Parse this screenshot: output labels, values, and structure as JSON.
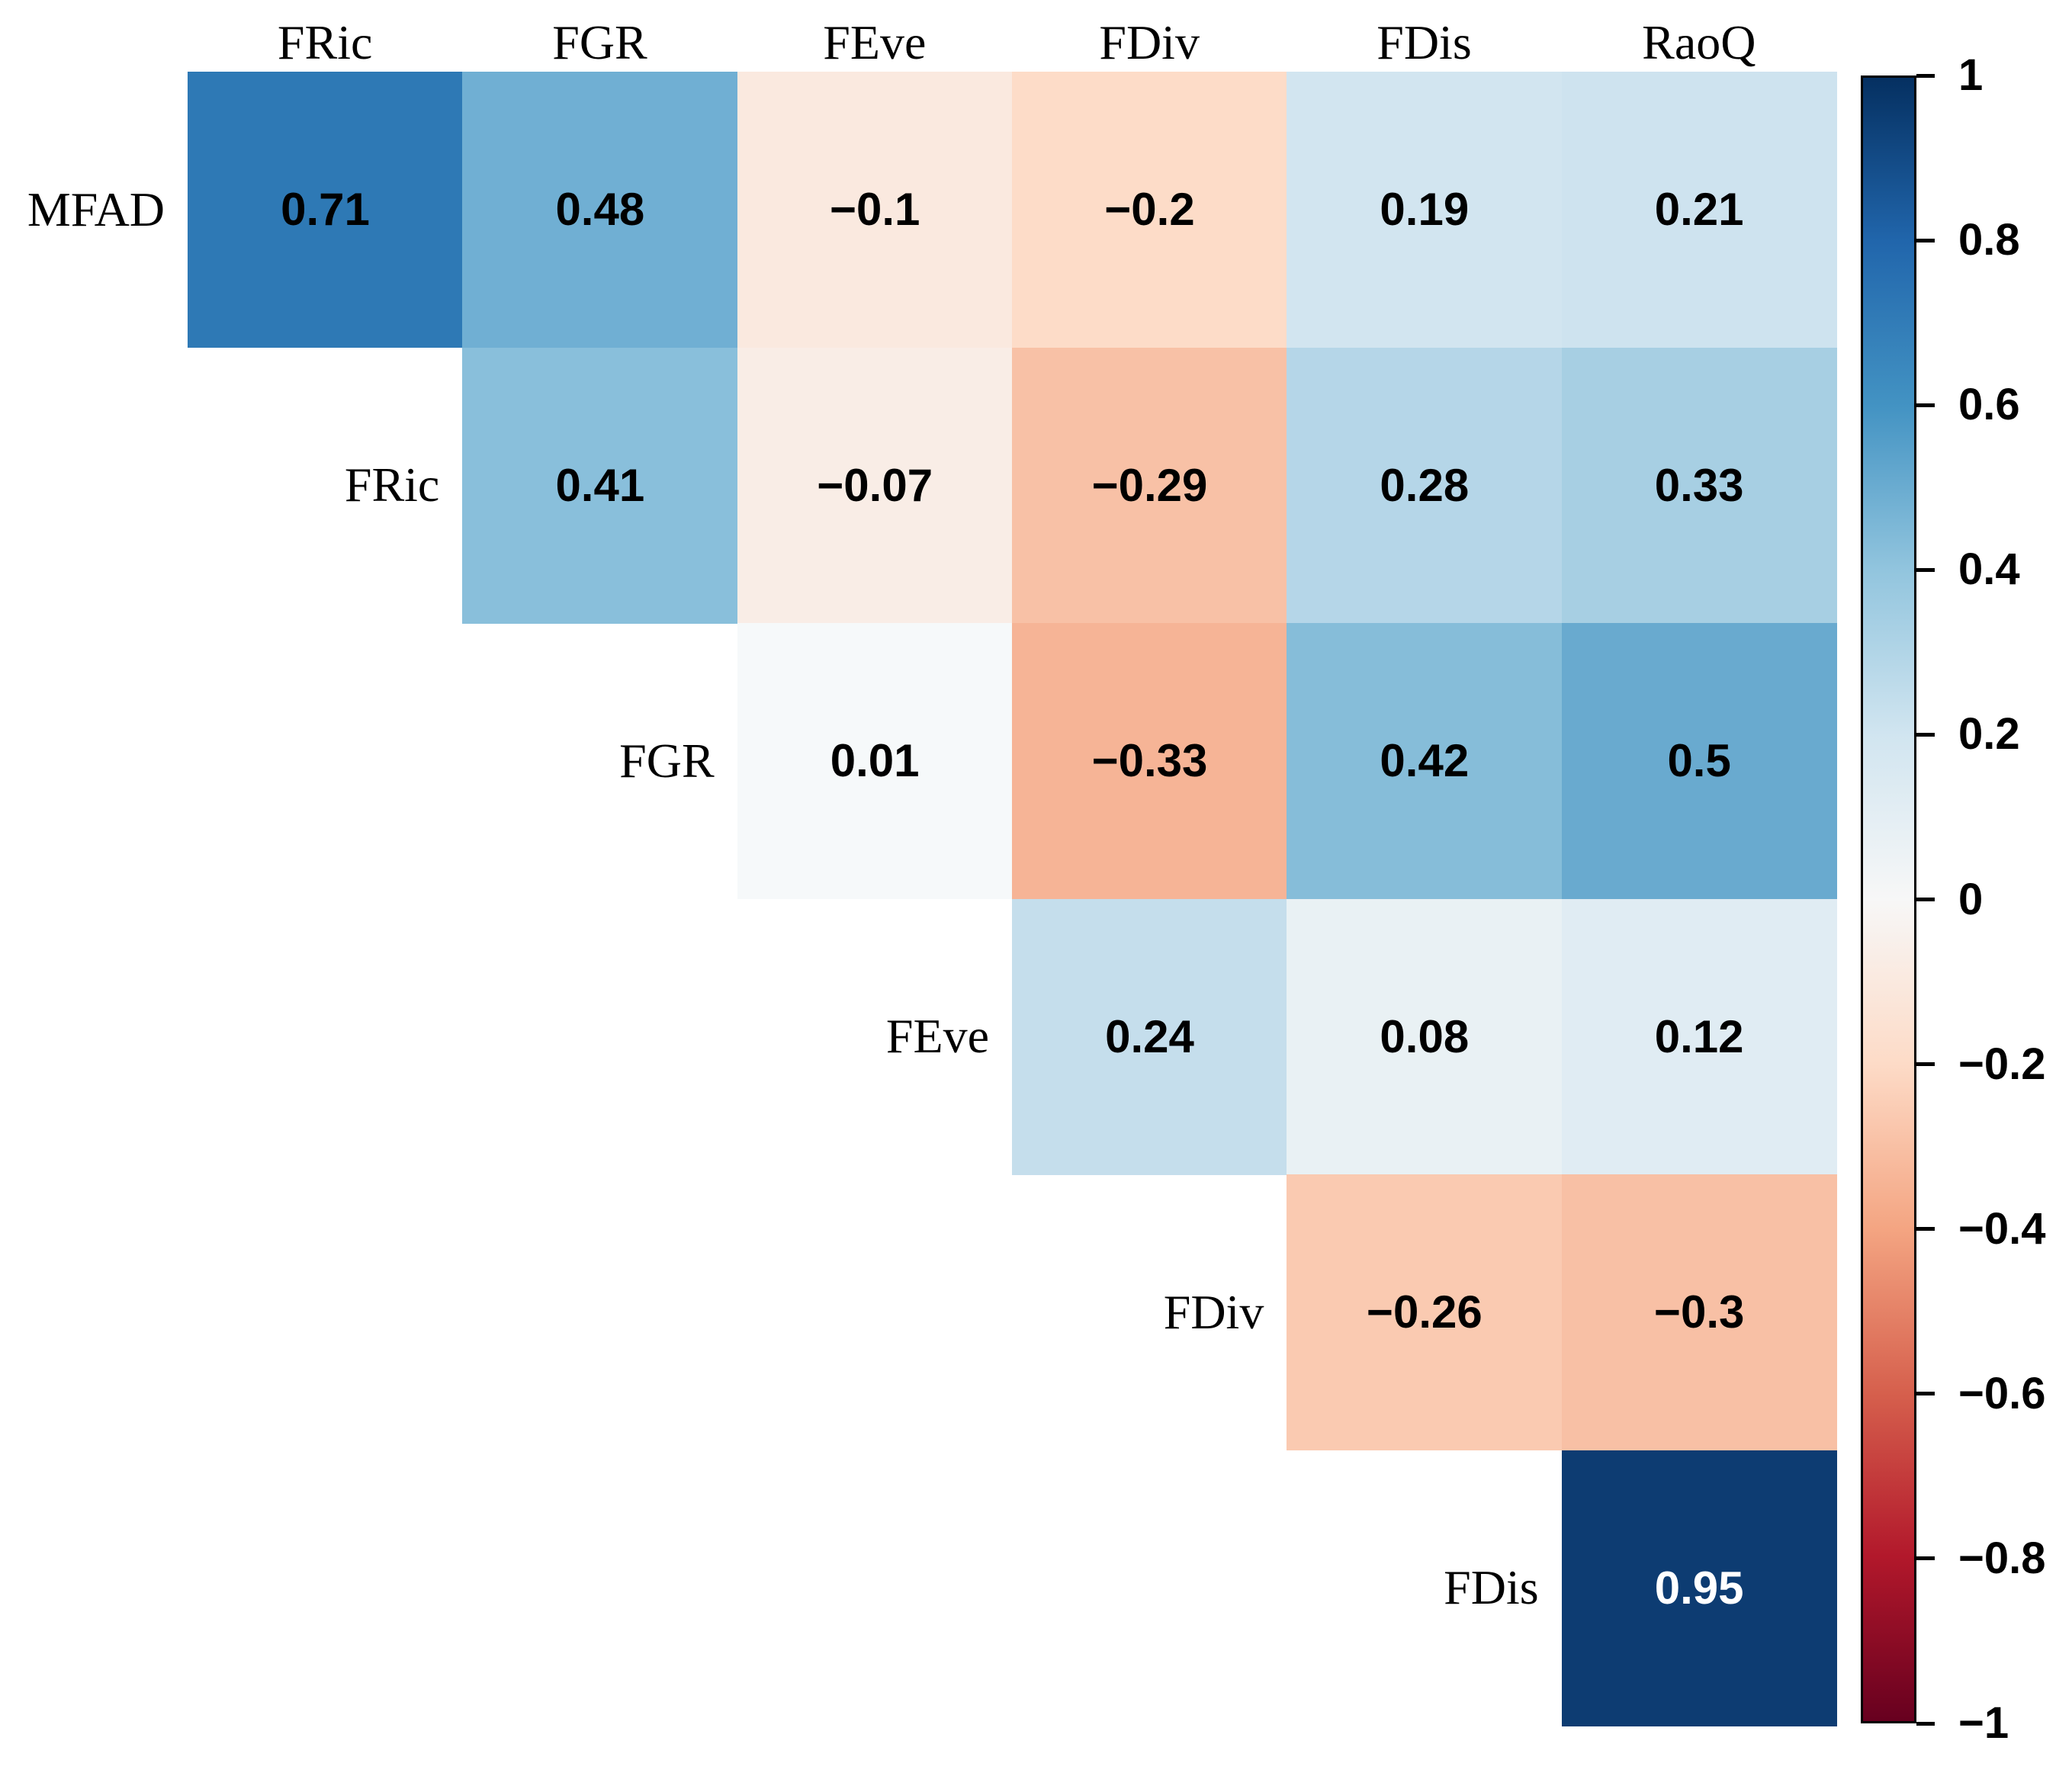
{
  "chart_data": {
    "type": "heatmap",
    "subtype": "correlation-matrix-upper-triangle",
    "title": "",
    "background": "#FFFFFF",
    "row_labels": [
      "MFAD",
      "FRic",
      "FGR",
      "FEve",
      "FDiv",
      "FDis"
    ],
    "col_labels": [
      "FRic",
      "FGR",
      "FEve",
      "FDiv",
      "FDis",
      "RaoQ"
    ],
    "cells": [
      {
        "row": 0,
        "col": 0,
        "value": 0.71,
        "label": "0.71",
        "color": "#2E79B5",
        "text_color": "#000000"
      },
      {
        "row": 0,
        "col": 1,
        "value": 0.48,
        "label": "0.48",
        "color": "#70AFD3",
        "text_color": "#000000"
      },
      {
        "row": 0,
        "col": 2,
        "value": -0.1,
        "label": "−0.1",
        "color": "#FAE9DF",
        "text_color": "#000000"
      },
      {
        "row": 0,
        "col": 3,
        "value": -0.2,
        "label": "−0.2",
        "color": "#FDDCC8",
        "text_color": "#000000"
      },
      {
        "row": 0,
        "col": 4,
        "value": 0.19,
        "label": "0.19",
        "color": "#D2E5F0",
        "text_color": "#000000"
      },
      {
        "row": 0,
        "col": 5,
        "value": 0.21,
        "label": "0.21",
        "color": "#CEE3EF",
        "text_color": "#000000"
      },
      {
        "row": 1,
        "col": 1,
        "value": 0.41,
        "label": "0.41",
        "color": "#89BFDB",
        "text_color": "#000000"
      },
      {
        "row": 1,
        "col": 2,
        "value": -0.07,
        "label": "−0.07",
        "color": "#F9EDE6",
        "text_color": "#000000"
      },
      {
        "row": 1,
        "col": 3,
        "value": -0.29,
        "label": "−0.29",
        "color": "#F8C1A6",
        "text_color": "#000000"
      },
      {
        "row": 1,
        "col": 4,
        "value": 0.28,
        "label": "0.28",
        "color": "#B5D6E8",
        "text_color": "#000000"
      },
      {
        "row": 1,
        "col": 5,
        "value": 0.33,
        "label": "0.33",
        "color": "#A7CFE3",
        "text_color": "#000000"
      },
      {
        "row": 2,
        "col": 2,
        "value": 0.01,
        "label": "0.01",
        "color": "#F6F9FA",
        "text_color": "#000000"
      },
      {
        "row": 2,
        "col": 3,
        "value": -0.33,
        "label": "−0.33",
        "color": "#F6B496",
        "text_color": "#000000"
      },
      {
        "row": 2,
        "col": 4,
        "value": 0.42,
        "label": "0.42",
        "color": "#86BDD9",
        "text_color": "#000000"
      },
      {
        "row": 2,
        "col": 5,
        "value": 0.5,
        "label": "0.5",
        "color": "#69AACF",
        "text_color": "#000000"
      },
      {
        "row": 3,
        "col": 3,
        "value": 0.24,
        "label": "0.24",
        "color": "#C5DEEC",
        "text_color": "#000000"
      },
      {
        "row": 3,
        "col": 4,
        "value": 0.08,
        "label": "0.08",
        "color": "#E9F1F4",
        "text_color": "#000000"
      },
      {
        "row": 3,
        "col": 5,
        "value": 0.12,
        "label": "0.12",
        "color": "#E0ECF3",
        "text_color": "#000000"
      },
      {
        "row": 4,
        "col": 4,
        "value": -0.26,
        "label": "−0.26",
        "color": "#FACAB1",
        "text_color": "#000000"
      },
      {
        "row": 4,
        "col": 5,
        "value": -0.3,
        "label": "−0.3",
        "color": "#F8C0A5",
        "text_color": "#000000"
      },
      {
        "row": 5,
        "col": 5,
        "value": 0.95,
        "label": "0.95",
        "color": "#0D3C72",
        "text_color": "#FFFFFF"
      }
    ],
    "colorbar": {
      "min": -1,
      "max": 1,
      "tick_step": 0.2,
      "tick_labels": [
        "1",
        "0.8",
        "0.6",
        "0.4",
        "0.2",
        "0",
        "−0.2",
        "−0.4",
        "−0.6",
        "−0.8",
        "−1"
      ],
      "gradient_stops_top_to_bottom": [
        "#053061",
        "#2166AC",
        "#4393C3",
        "#92C5DE",
        "#D1E5F0",
        "#F7F7F7",
        "#FDDBC7",
        "#F4A582",
        "#D6604D",
        "#B2182B",
        "#67001F"
      ],
      "border_color": "#000000",
      "tick_color": "#000000"
    },
    "legend_position": "right",
    "grid": false
  }
}
